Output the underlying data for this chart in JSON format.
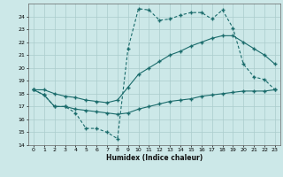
{
  "xlabel": "Humidex (Indice chaleur)",
  "background_color": "#cce8e8",
  "grid_color": "#aacccc",
  "line_color": "#1a6b6b",
  "x": [
    0,
    1,
    2,
    3,
    4,
    5,
    6,
    7,
    8,
    9,
    10,
    11,
    12,
    13,
    14,
    15,
    16,
    17,
    18,
    19,
    20,
    21,
    22,
    23
  ],
  "y_top": [
    18.3,
    17.9,
    17.0,
    17.0,
    16.5,
    15.3,
    15.3,
    15.0,
    14.5,
    21.5,
    24.6,
    24.5,
    23.7,
    23.8,
    24.1,
    24.3,
    24.3,
    23.8,
    24.5,
    23.1,
    20.3,
    19.3,
    19.1,
    18.3
  ],
  "y_mid": [
    18.3,
    18.3,
    18.0,
    17.8,
    17.7,
    17.5,
    17.4,
    17.3,
    17.5,
    18.5,
    19.5,
    20.0,
    20.5,
    21.0,
    21.3,
    21.7,
    22.0,
    22.3,
    22.5,
    22.5,
    22.0,
    21.5,
    21.0,
    20.3
  ],
  "y_bot": [
    18.3,
    17.9,
    17.0,
    17.0,
    16.8,
    16.7,
    16.6,
    16.5,
    16.4,
    16.5,
    16.8,
    17.0,
    17.2,
    17.4,
    17.5,
    17.6,
    17.8,
    17.9,
    18.0,
    18.1,
    18.2,
    18.2,
    18.2,
    18.3
  ],
  "ylim": [
    14,
    25
  ],
  "xlim": [
    -0.5,
    23.5
  ],
  "yticks": [
    14,
    15,
    16,
    17,
    18,
    19,
    20,
    21,
    22,
    23,
    24
  ],
  "xticks": [
    0,
    1,
    2,
    3,
    4,
    5,
    6,
    7,
    8,
    9,
    10,
    11,
    12,
    13,
    14,
    15,
    16,
    17,
    18,
    19,
    20,
    21,
    22,
    23
  ]
}
